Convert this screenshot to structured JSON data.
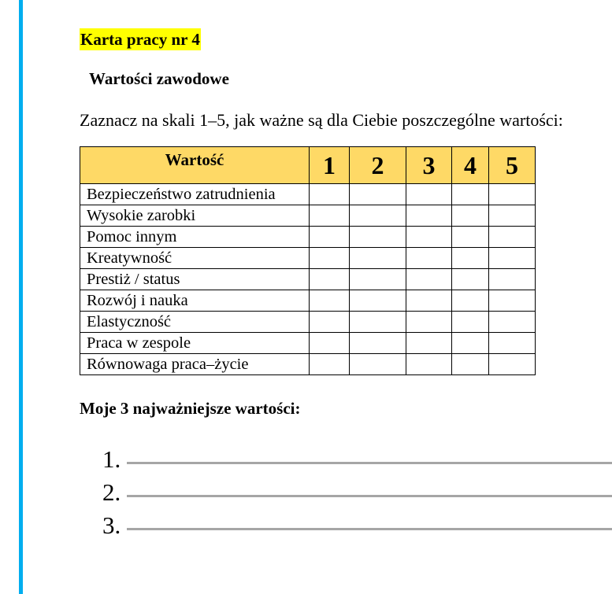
{
  "title": "Karta pracy nr 4",
  "subtitle": "Wartości zawodowe",
  "instruction": "Zaznacz na skali 1–5, jak ważne są dla Ciebie poszczególne wartości:",
  "table": {
    "header": "Wartość",
    "scale": [
      "1",
      "2",
      "3",
      "4",
      "5"
    ],
    "rows": [
      "Bezpieczeństwo zatrudnienia",
      "Wysokie zarobki",
      "Pomoc innym",
      "Kreatywność",
      "Prestiż / status",
      "Rozwój i nauka",
      "Elastyczność",
      "Praca w zespole",
      "Równowaga praca–życie"
    ]
  },
  "top3_heading": "Moje 3 najważniejsze wartości:",
  "answers": [
    "1.",
    "2.",
    "3."
  ],
  "colors": {
    "accent_bar": "#00aeef",
    "highlight": "#ffff00",
    "header_fill": "#fed966"
  }
}
